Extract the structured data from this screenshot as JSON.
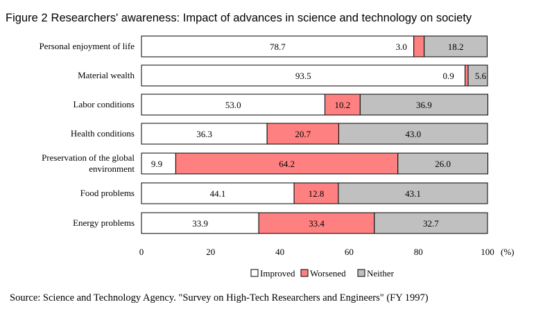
{
  "title": {
    "number": "Figure 2",
    "text": "Researchers' awareness: Impact of advances in science and technology on society"
  },
  "source": "Source:  Science and Technology Agency. \"Survey on High-Tech Researchers and Engineers\" (FY 1997)",
  "colors": {
    "improved": "#ffffff",
    "worsened": "#ff8080",
    "neither": "#c0c0c0",
    "border": "#000000"
  },
  "chart_data": {
    "type": "bar",
    "orientation": "horizontal",
    "stacked": true,
    "categories": [
      "Personal enjoyment of life",
      "Material wealth",
      "Labor conditions",
      "Health conditions",
      "Preservation of the global environment",
      "Food problems",
      "Energy problems"
    ],
    "category_labels": [
      [
        "Personal enjoyment of life"
      ],
      [
        "Material wealth"
      ],
      [
        "Labor conditions"
      ],
      [
        "Health conditions"
      ],
      [
        "Preservation of the global",
        "environment"
      ],
      [
        "Food problems"
      ],
      [
        "Energy problems"
      ]
    ],
    "series": [
      {
        "name": "Improved",
        "values": [
          78.7,
          93.5,
          53.0,
          36.3,
          9.9,
          44.1,
          33.9
        ]
      },
      {
        "name": "Worsened",
        "values": [
          3.0,
          0.9,
          10.2,
          20.7,
          64.2,
          12.8,
          33.4
        ]
      },
      {
        "name": "Neither",
        "values": [
          18.2,
          5.6,
          36.9,
          43.0,
          26.0,
          43.1,
          32.7
        ]
      }
    ],
    "data_labels": [
      [
        "78.7",
        "3.0",
        "18.2"
      ],
      [
        "93.5",
        "0.9",
        "5.6"
      ],
      [
        "53.0",
        "10.2",
        "36.9"
      ],
      [
        "36.3",
        "20.7",
        "43.0"
      ],
      [
        "9.9",
        "64.2",
        "26.0"
      ],
      [
        "44.1",
        "12.8",
        "43.1"
      ],
      [
        "33.9",
        "33.4",
        "32.7"
      ]
    ],
    "x_ticks": [
      "0",
      "20",
      "40",
      "60",
      "80",
      "100"
    ],
    "x_unit": "(%)",
    "xlim": [
      0,
      100
    ],
    "grid": false,
    "legend_position": "bottom-center"
  }
}
